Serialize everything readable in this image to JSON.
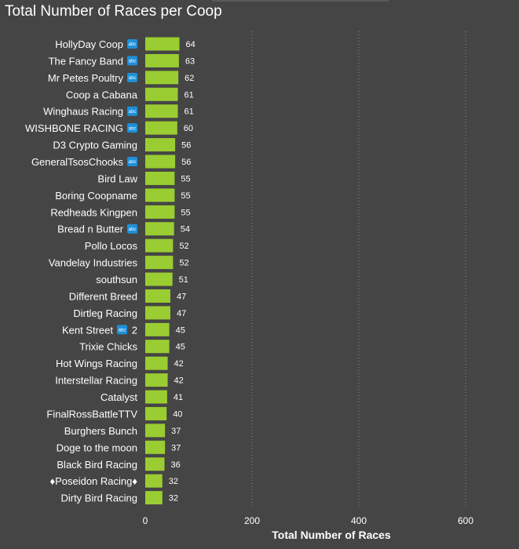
{
  "chart_data": {
    "type": "bar",
    "orientation": "horizontal",
    "title": "Total Number of Races per Coop",
    "xlabel": "Total Number of Races",
    "ylabel": "",
    "xlim": [
      0,
      700
    ],
    "x_ticks": [
      0,
      200,
      400,
      600
    ],
    "grid": "vertical-dotted",
    "bar_color": "#9ACD32",
    "badge_icon": "abc-badge-icon",
    "badge_color": "#1E90D8",
    "categories": [
      {
        "label": "HollyDay Coop",
        "badge": true,
        "suffix": ""
      },
      {
        "label": "The Fancy Band",
        "badge": true,
        "suffix": ""
      },
      {
        "label": "Mr Petes Poultry",
        "badge": true,
        "suffix": ""
      },
      {
        "label": "Coop a Cabana",
        "badge": false,
        "suffix": ""
      },
      {
        "label": "Winghaus Racing",
        "badge": true,
        "suffix": ""
      },
      {
        "label": "WISHBONE RACING",
        "badge": true,
        "suffix": ""
      },
      {
        "label": "D3 Crypto Gaming",
        "badge": false,
        "suffix": ""
      },
      {
        "label": "GeneralTsosChooks",
        "badge": true,
        "suffix": ""
      },
      {
        "label": "Bird Law",
        "badge": false,
        "suffix": ""
      },
      {
        "label": "Boring Coopname",
        "badge": false,
        "suffix": ""
      },
      {
        "label": "Redheads Kingpen",
        "badge": false,
        "suffix": ""
      },
      {
        "label": "Bread n Butter",
        "badge": true,
        "suffix": ""
      },
      {
        "label": "Pollo Locos",
        "badge": false,
        "suffix": ""
      },
      {
        "label": "Vandelay Industries",
        "badge": false,
        "suffix": ""
      },
      {
        "label": "southsun",
        "badge": false,
        "suffix": ""
      },
      {
        "label": "Different Breed",
        "badge": false,
        "suffix": ""
      },
      {
        "label": "Dirtleg Racing",
        "badge": false,
        "suffix": ""
      },
      {
        "label": "Kent Street",
        "badge": true,
        "suffix": "2"
      },
      {
        "label": "Trixie Chicks",
        "badge": false,
        "suffix": ""
      },
      {
        "label": "Hot Wings Racing",
        "badge": false,
        "suffix": ""
      },
      {
        "label": "Interstellar Racing",
        "badge": false,
        "suffix": ""
      },
      {
        "label": "Catalyst",
        "badge": false,
        "suffix": ""
      },
      {
        "label": "FinalRossBattleTTV",
        "badge": false,
        "suffix": ""
      },
      {
        "label": "Burghers Bunch",
        "badge": false,
        "suffix": ""
      },
      {
        "label": "Doge to the moon",
        "badge": false,
        "suffix": ""
      },
      {
        "label": "Black Bird Racing",
        "badge": false,
        "suffix": ""
      },
      {
        "label": "♦Poseidon Racing♦",
        "badge": false,
        "suffix": ""
      },
      {
        "label": "Dirty Bird Racing",
        "badge": false,
        "suffix": ""
      }
    ],
    "values": [
      64,
      63,
      62,
      61,
      61,
      60,
      56,
      56,
      55,
      55,
      55,
      54,
      52,
      52,
      51,
      47,
      47,
      45,
      45,
      42,
      42,
      41,
      40,
      37,
      37,
      36,
      32,
      32
    ]
  }
}
